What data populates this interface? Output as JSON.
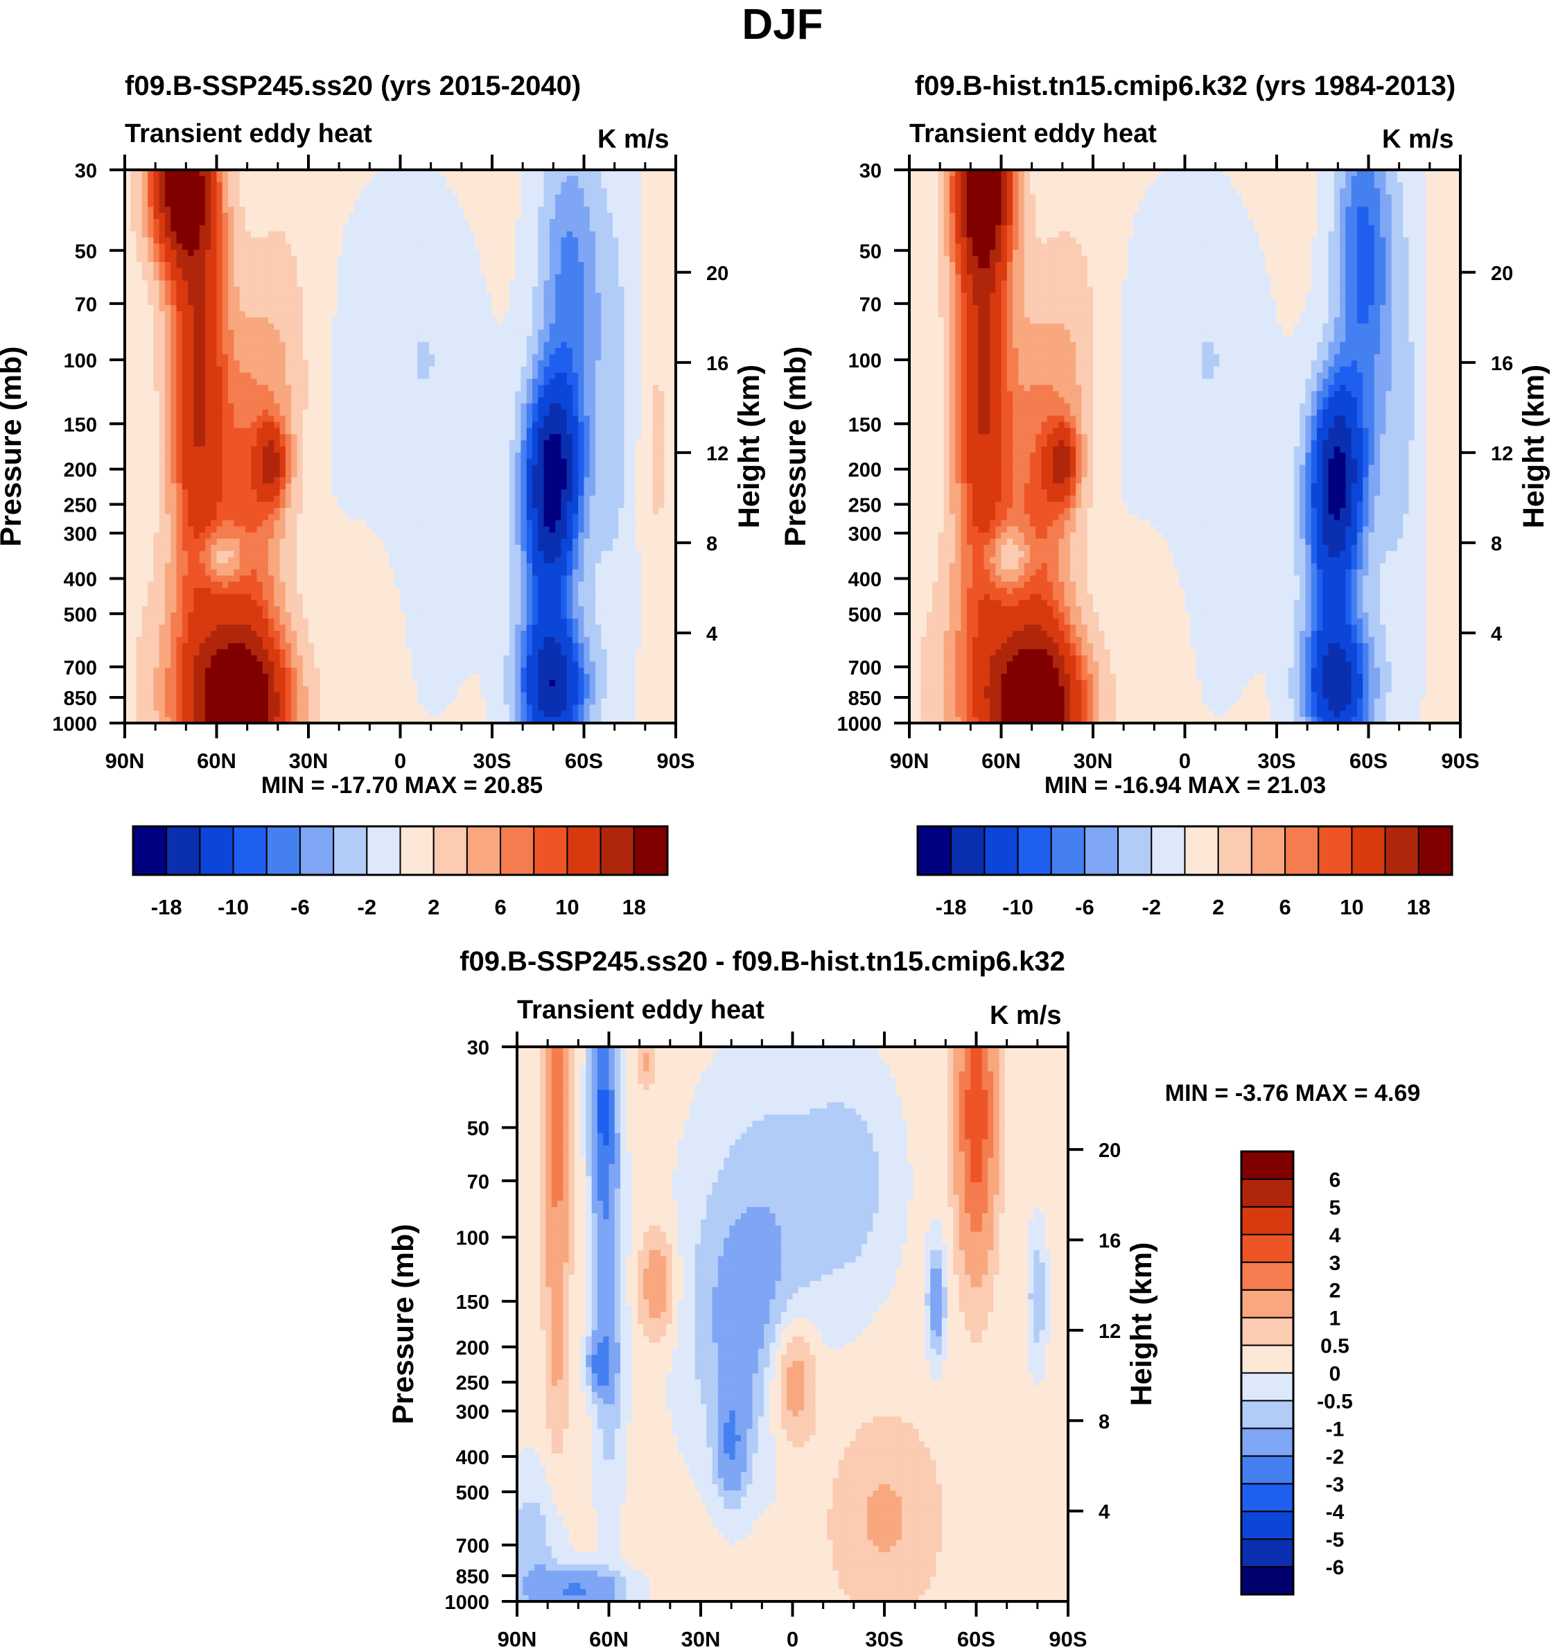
{
  "figure_title": "DJF",
  "colors": {
    "main_scale": [
      "#000080",
      "#0a2fb0",
      "#0b46d8",
      "#1f5ff0",
      "#4480f0",
      "#7fa5f5",
      "#b2ccf8",
      "#dde9fb",
      "#fde8d8",
      "#fbcbb2",
      "#f8a77e",
      "#f47c4e",
      "#ee5526",
      "#d8390f",
      "#b0260b",
      "#800000"
    ],
    "diff_scale": [
      "#00006e",
      "#0a2fb0",
      "#0b46d8",
      "#1f5ff0",
      "#4480f0",
      "#7fa5f5",
      "#b2ccf8",
      "#dde9fb",
      "#fde8d8",
      "#fbcbb2",
      "#f8a77e",
      "#f47c4e",
      "#ee5526",
      "#d8390f",
      "#b0260b",
      "#800000"
    ]
  },
  "chart_data": [
    {
      "type": "heatmap",
      "id": "ssp245",
      "title": "f09.B-SSP245.ss20 (yrs 2015-2040)",
      "left_title": "Transient eddy heat",
      "right_title": "K m/s",
      "xlabel": "",
      "ylabel": "Pressure (mb)",
      "ylabel_right": "Height (km)",
      "x_ticks": [
        "90N",
        "60N",
        "30N",
        "0",
        "30S",
        "60S",
        "90S"
      ],
      "x_range": [
        90,
        -90
      ],
      "y_ticks": [
        30,
        50,
        70,
        100,
        150,
        200,
        250,
        300,
        400,
        500,
        700,
        850,
        1000
      ],
      "y_range": [
        1000,
        30
      ],
      "height_ticks": [
        4,
        8,
        12,
        16,
        20
      ],
      "min_text": "MIN = -17.70  MAX =  20.85",
      "min": -17.7,
      "max": 20.85,
      "levels": [
        -18,
        -14,
        -10,
        -8,
        -6,
        -4,
        -2,
        0,
        2,
        4,
        6,
        8,
        10,
        14,
        18
      ],
      "colorbar_labels": [
        "-18",
        "-10",
        "-6",
        "-2",
        "2",
        "6",
        "10",
        "18"
      ]
    },
    {
      "type": "heatmap",
      "id": "hist",
      "title": "f09.B-hist.tn15.cmip6.k32 (yrs 1984-2013)",
      "left_title": "Transient eddy heat",
      "right_title": "K m/s",
      "xlabel": "",
      "ylabel": "Pressure (mb)",
      "ylabel_right": "Height (km)",
      "x_ticks": [
        "90N",
        "60N",
        "30N",
        "0",
        "30S",
        "60S",
        "90S"
      ],
      "x_range": [
        90,
        -90
      ],
      "y_ticks": [
        30,
        50,
        70,
        100,
        150,
        200,
        250,
        300,
        400,
        500,
        700,
        850,
        1000
      ],
      "y_range": [
        1000,
        30
      ],
      "height_ticks": [
        4,
        8,
        12,
        16,
        20
      ],
      "min_text": "MIN = -16.94  MAX =  21.03",
      "min": -16.94,
      "max": 21.03,
      "levels": [
        -18,
        -14,
        -10,
        -8,
        -6,
        -4,
        -2,
        0,
        2,
        4,
        6,
        8,
        10,
        14,
        18
      ],
      "colorbar_labels": [
        "-18",
        "-10",
        "-6",
        "-2",
        "2",
        "6",
        "10",
        "18"
      ]
    },
    {
      "type": "heatmap",
      "id": "diff",
      "title": "f09.B-SSP245.ss20 - f09.B-hist.tn15.cmip6.k32",
      "left_title": "Transient eddy heat",
      "right_title": "K m/s",
      "xlabel": "",
      "ylabel": "Pressure (mb)",
      "ylabel_right": "Height (km)",
      "x_ticks": [
        "90N",
        "60N",
        "30N",
        "0",
        "30S",
        "60S",
        "90S"
      ],
      "x_range": [
        90,
        -90
      ],
      "y_ticks": [
        30,
        50,
        70,
        100,
        150,
        200,
        250,
        300,
        400,
        500,
        700,
        850,
        1000
      ],
      "y_range": [
        1000,
        30
      ],
      "height_ticks": [
        4,
        8,
        12,
        16,
        20
      ],
      "min_text": "MIN =  -3.76  MAX =   4.69",
      "min": -3.76,
      "max": 4.69,
      "levels": [
        -6,
        -5,
        -4,
        -3,
        -2,
        -1,
        -0.5,
        0,
        0.5,
        1,
        2,
        3,
        4,
        5,
        6
      ],
      "colorbar_labels": [
        "6",
        "5",
        "4",
        "3",
        "2",
        "1",
        "0.5",
        "0",
        "-0.5",
        "-1",
        "-2",
        "-3",
        "-4",
        "-5",
        "-6"
      ]
    }
  ]
}
